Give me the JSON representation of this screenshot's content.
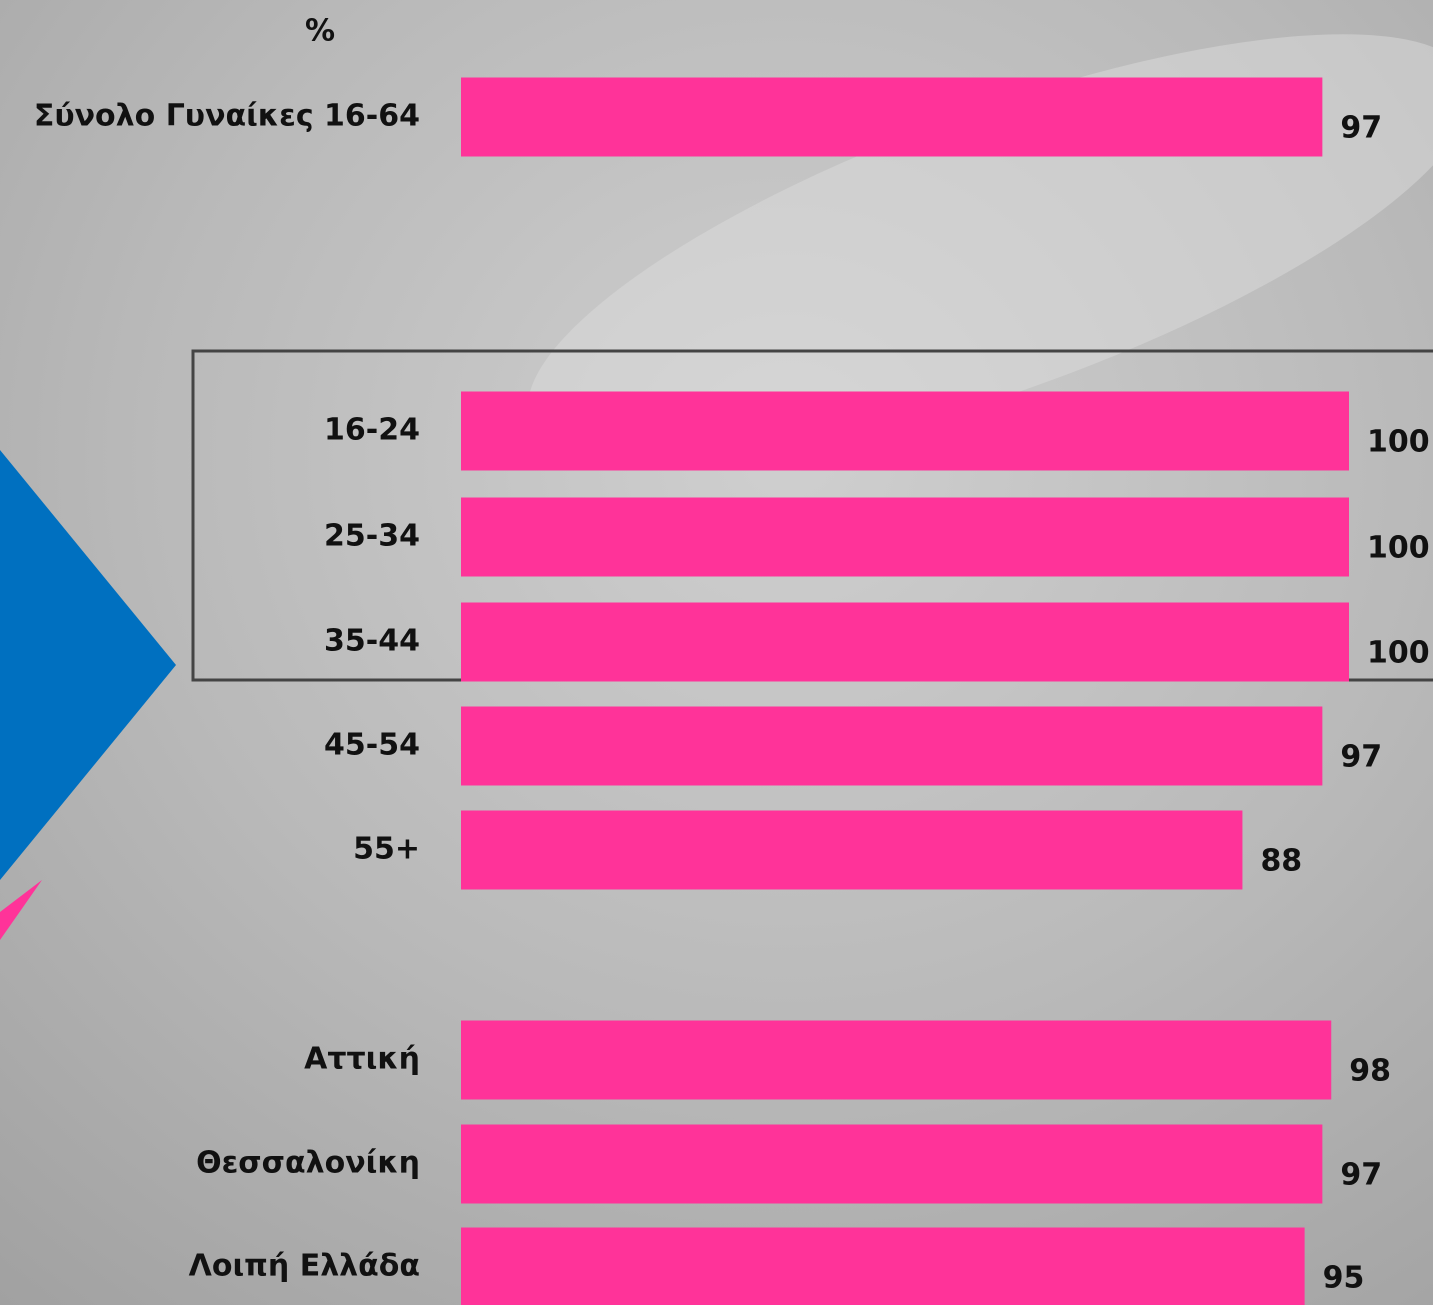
{
  "chart_data": {
    "type": "bar",
    "orientation": "horizontal",
    "unit_label": "%",
    "categories": [
      "Σύνολο Γυναίκες 16-64",
      "16-24",
      "25-34",
      "35-44",
      "45-54",
      "55+",
      "Αττική",
      "Θεσσαλονίκη",
      "Λοιπή Ελλάδα"
    ],
    "values": [
      97,
      100,
      100,
      100,
      97,
      88,
      98,
      97,
      95
    ],
    "color": "#ff3399"
  }
}
